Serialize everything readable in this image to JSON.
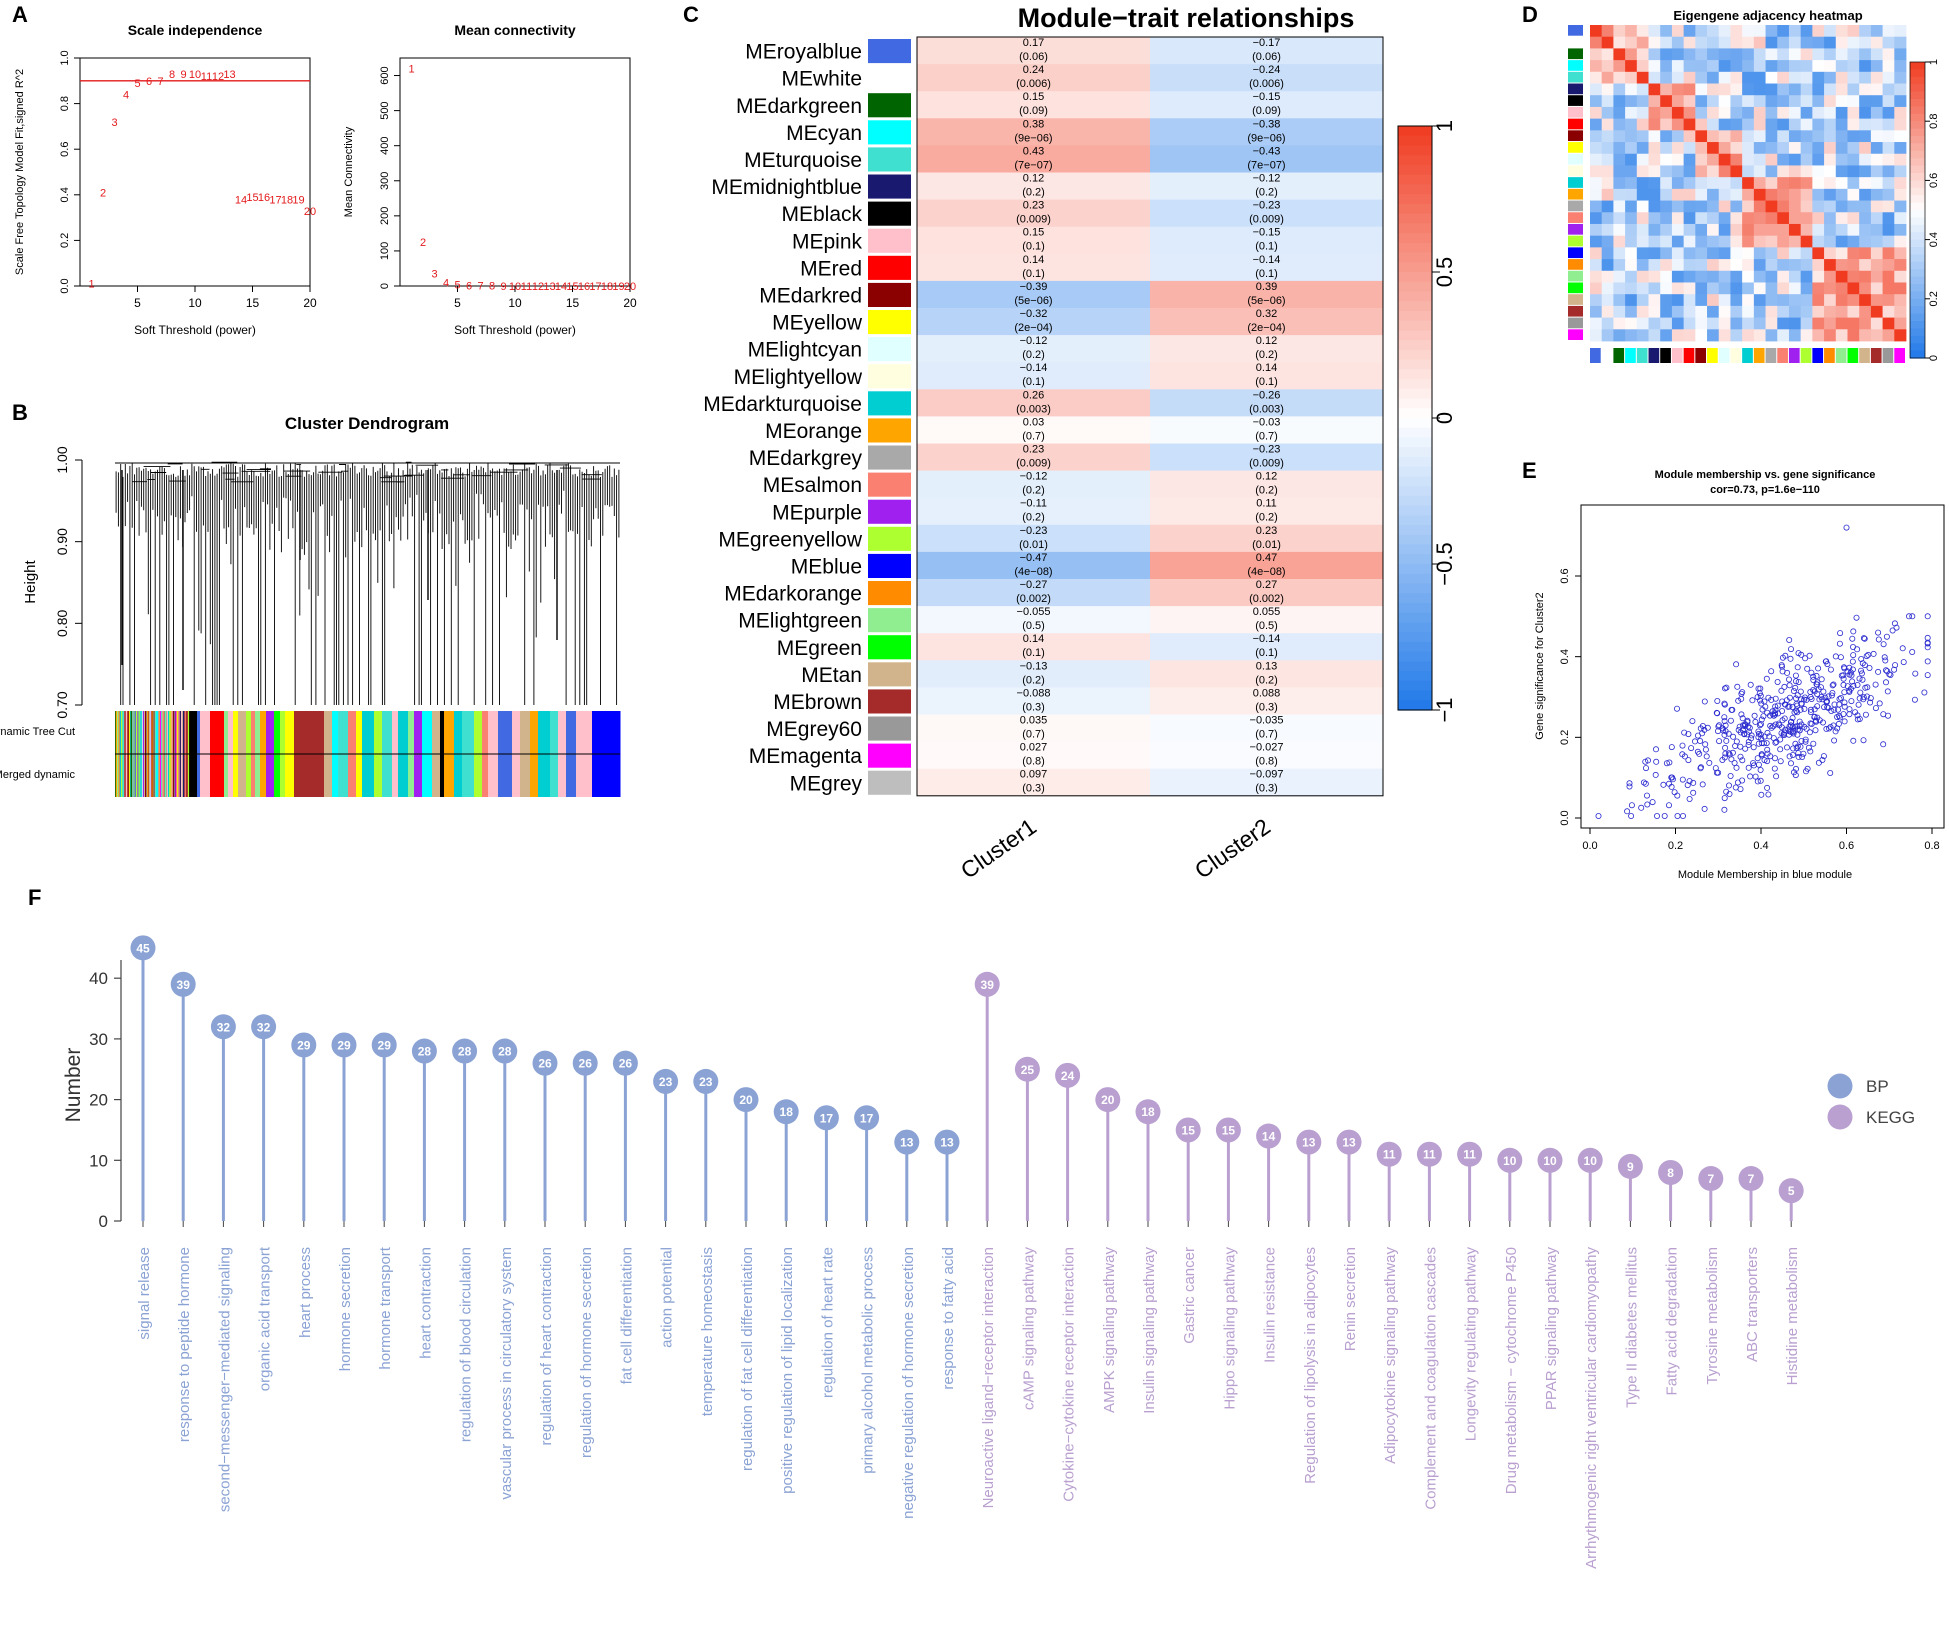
{
  "panel_letters": [
    "A",
    "B",
    "C",
    "D",
    "E",
    "F"
  ],
  "colors": {
    "red": "#e31a1c",
    "line_bp": "#8ba3d4",
    "kegg": "#b9a0d0",
    "scatter": "#2a2ad0",
    "heat_low": "#1f78e8",
    "heat_high": "#f03b20"
  },
  "chart_data": [
    {
      "id": "A1",
      "type": "scatter",
      "title": "Scale independence",
      "xlabel": "Soft Threshold (power)",
      "ylabel": "Scale Free Topology Model Fit,signed R^2",
      "xlim": [
        0,
        20
      ],
      "ylim": [
        0,
        1
      ],
      "xticks": [
        "5",
        "10",
        "15",
        "20"
      ],
      "yticks": [
        "0.0",
        "0.2",
        "0.4",
        "0.6",
        "0.8",
        "1.0"
      ],
      "hline": 0.9,
      "points": [
        {
          "x": 1,
          "y": 0.01,
          "label": "1"
        },
        {
          "x": 2,
          "y": 0.41,
          "label": "2"
        },
        {
          "x": 3,
          "y": 0.72,
          "label": "3"
        },
        {
          "x": 4,
          "y": 0.84,
          "label": "4"
        },
        {
          "x": 5,
          "y": 0.89,
          "label": "5"
        },
        {
          "x": 6,
          "y": 0.9,
          "label": "6"
        },
        {
          "x": 7,
          "y": 0.9,
          "label": "7"
        },
        {
          "x": 8,
          "y": 0.93,
          "label": "8"
        },
        {
          "x": 9,
          "y": 0.93,
          "label": "9"
        },
        {
          "x": 10,
          "y": 0.93,
          "label": "10"
        },
        {
          "x": 11,
          "y": 0.92,
          "label": "11"
        },
        {
          "x": 12,
          "y": 0.92,
          "label": "12"
        },
        {
          "x": 13,
          "y": 0.93,
          "label": "13"
        },
        {
          "x": 14,
          "y": 0.38,
          "label": "14"
        },
        {
          "x": 15,
          "y": 0.39,
          "label": "15"
        },
        {
          "x": 16,
          "y": 0.39,
          "label": "16"
        },
        {
          "x": 17,
          "y": 0.38,
          "label": "17"
        },
        {
          "x": 18,
          "y": 0.38,
          "label": "18"
        },
        {
          "x": 19,
          "y": 0.38,
          "label": "19"
        },
        {
          "x": 20,
          "y": 0.33,
          "label": "20"
        }
      ]
    },
    {
      "id": "A2",
      "type": "scatter",
      "title": "Mean connectivity",
      "xlabel": "Soft Threshold (power)",
      "ylabel": "Mean Connectivity",
      "xlim": [
        0,
        20
      ],
      "ylim": [
        0,
        650
      ],
      "xticks": [
        "5",
        "10",
        "15",
        "20"
      ],
      "yticks": [
        "0",
        "100",
        "200",
        "300",
        "400",
        "500",
        "600"
      ],
      "points": [
        {
          "x": 1,
          "y": 620,
          "label": "1"
        },
        {
          "x": 2,
          "y": 125,
          "label": "2"
        },
        {
          "x": 3,
          "y": 35,
          "label": "3"
        },
        {
          "x": 4,
          "y": 10,
          "label": "4"
        },
        {
          "x": 5,
          "y": 4,
          "label": "5"
        },
        {
          "x": 6,
          "y": 2,
          "label": "6"
        },
        {
          "x": 7,
          "y": 1,
          "label": "7"
        },
        {
          "x": 8,
          "y": 1,
          "label": "8"
        },
        {
          "x": 9,
          "y": 0,
          "label": "9"
        },
        {
          "x": 10,
          "y": 0,
          "label": "10"
        },
        {
          "x": 11,
          "y": 0,
          "label": "11"
        },
        {
          "x": 12,
          "y": 0,
          "label": "12"
        },
        {
          "x": 13,
          "y": 0,
          "label": "13"
        },
        {
          "x": 14,
          "y": 0,
          "label": "14"
        },
        {
          "x": 15,
          "y": 0,
          "label": "15"
        },
        {
          "x": 16,
          "y": 0,
          "label": "16"
        },
        {
          "x": 17,
          "y": 0,
          "label": "17"
        },
        {
          "x": 18,
          "y": 0,
          "label": "18"
        },
        {
          "x": 19,
          "y": 0,
          "label": "19"
        },
        {
          "x": 20,
          "y": 0,
          "label": "20"
        }
      ]
    },
    {
      "id": "B",
      "type": "dendrogram",
      "title": "Cluster Dendrogram",
      "ylabel": "Height",
      "ylim": [
        0.7,
        1.0
      ],
      "yticks": [
        "0.70",
        "0.80",
        "0.90",
        "1.00"
      ],
      "rows": [
        "Dynamic Tree Cut",
        "Merged dynamic"
      ]
    },
    {
      "id": "C",
      "type": "heatmap",
      "title": "Module−trait relationships",
      "columns": [
        "Cluster1",
        "Cluster2"
      ],
      "colorbar_ticks": [
        "1",
        "0.5",
        "0",
        "−0.5",
        "−1"
      ],
      "rows": [
        {
          "name": "MEroyalblue",
          "color": "#4169e1",
          "c1": 0.17,
          "c1t": "0.17",
          "p1": "(0.06)",
          "c2": -0.17,
          "c2t": "−0.17",
          "p2": "(0.06)"
        },
        {
          "name": "MEwhite",
          "color": "#ffffff",
          "c1": 0.24,
          "c1t": "0.24",
          "p1": "(0.006)",
          "c2": -0.24,
          "c2t": "−0.24",
          "p2": "(0.006)"
        },
        {
          "name": "MEdarkgreen",
          "color": "#006400",
          "c1": 0.15,
          "c1t": "0.15",
          "p1": "(0.09)",
          "c2": -0.15,
          "c2t": "−0.15",
          "p2": "(0.09)"
        },
        {
          "name": "MEcyan",
          "color": "#00ffff",
          "c1": 0.38,
          "c1t": "0.38",
          "p1": "(9e−06)",
          "c2": -0.38,
          "c2t": "−0.38",
          "p2": "(9e−06)"
        },
        {
          "name": "MEturquoise",
          "color": "#40e0d0",
          "c1": 0.43,
          "c1t": "0.43",
          "p1": "(7e−07)",
          "c2": -0.43,
          "c2t": "−0.43",
          "p2": "(7e−07)"
        },
        {
          "name": "MEmidnightblue",
          "color": "#191970",
          "c1": 0.12,
          "c1t": "0.12",
          "p1": "(0.2)",
          "c2": -0.12,
          "c2t": "−0.12",
          "p2": "(0.2)"
        },
        {
          "name": "MEblack",
          "color": "#000000",
          "c1": 0.23,
          "c1t": "0.23",
          "p1": "(0.009)",
          "c2": -0.23,
          "c2t": "−0.23",
          "p2": "(0.009)"
        },
        {
          "name": "MEpink",
          "color": "#ffc0cb",
          "c1": 0.15,
          "c1t": "0.15",
          "p1": "(0.1)",
          "c2": -0.15,
          "c2t": "−0.15",
          "p2": "(0.1)"
        },
        {
          "name": "MEred",
          "color": "#ff0000",
          "c1": 0.14,
          "c1t": "0.14",
          "p1": "(0.1)",
          "c2": -0.14,
          "c2t": "−0.14",
          "p2": "(0.1)"
        },
        {
          "name": "MEdarkred",
          "color": "#8b0000",
          "c1": -0.39,
          "c1t": "−0.39",
          "p1": "(5e−06)",
          "c2": 0.39,
          "c2t": "0.39",
          "p2": "(5e−06)"
        },
        {
          "name": "MEyellow",
          "color": "#ffff00",
          "c1": -0.32,
          "c1t": "−0.32",
          "p1": "(2e−04)",
          "c2": 0.32,
          "c2t": "0.32",
          "p2": "(2e−04)"
        },
        {
          "name": "MElightcyan",
          "color": "#e0ffff",
          "c1": -0.12,
          "c1t": "−0.12",
          "p1": "(0.2)",
          "c2": 0.12,
          "c2t": "0.12",
          "p2": "(0.2)"
        },
        {
          "name": "MElightyellow",
          "color": "#ffffe0",
          "c1": -0.14,
          "c1t": "−0.14",
          "p1": "(0.1)",
          "c2": 0.14,
          "c2t": "0.14",
          "p2": "(0.1)"
        },
        {
          "name": "MEdarkturquoise",
          "color": "#00ced1",
          "c1": 0.26,
          "c1t": "0.26",
          "p1": "(0.003)",
          "c2": -0.26,
          "c2t": "−0.26",
          "p2": "(0.003)"
        },
        {
          "name": "MEorange",
          "color": "#ffa500",
          "c1": 0.03,
          "c1t": "0.03",
          "p1": "(0.7)",
          "c2": -0.03,
          "c2t": "−0.03",
          "p2": "(0.7)"
        },
        {
          "name": "MEdarkgrey",
          "color": "#a9a9a9",
          "c1": 0.23,
          "c1t": "0.23",
          "p1": "(0.009)",
          "c2": -0.23,
          "c2t": "−0.23",
          "p2": "(0.009)"
        },
        {
          "name": "MEsalmon",
          "color": "#fa8072",
          "c1": -0.12,
          "c1t": "−0.12",
          "p1": "(0.2)",
          "c2": 0.12,
          "c2t": "0.12",
          "p2": "(0.2)"
        },
        {
          "name": "MEpurple",
          "color": "#a020f0",
          "c1": -0.11,
          "c1t": "−0.11",
          "p1": "(0.2)",
          "c2": 0.11,
          "c2t": "0.11",
          "p2": "(0.2)"
        },
        {
          "name": "MEgreenyellow",
          "color": "#adff2f",
          "c1": -0.23,
          "c1t": "−0.23",
          "p1": "(0.01)",
          "c2": 0.23,
          "c2t": "0.23",
          "p2": "(0.01)"
        },
        {
          "name": "MEblue",
          "color": "#0000ff",
          "c1": -0.47,
          "c1t": "−0.47",
          "p1": "(4e−08)",
          "c2": 0.47,
          "c2t": "0.47",
          "p2": "(4e−08)"
        },
        {
          "name": "MEdarkorange",
          "color": "#ff8c00",
          "c1": -0.27,
          "c1t": "−0.27",
          "p1": "(0.002)",
          "c2": 0.27,
          "c2t": "0.27",
          "p2": "(0.002)"
        },
        {
          "name": "MElightgreen",
          "color": "#90ee90",
          "c1": -0.055,
          "c1t": "−0.055",
          "p1": "(0.5)",
          "c2": 0.055,
          "c2t": "0.055",
          "p2": "(0.5)"
        },
        {
          "name": "MEgreen",
          "color": "#00ff00",
          "c1": 0.14,
          "c1t": "0.14",
          "p1": "(0.1)",
          "c2": -0.14,
          "c2t": "−0.14",
          "p2": "(0.1)"
        },
        {
          "name": "MEtan",
          "color": "#d2b48c",
          "c1": -0.13,
          "c1t": "−0.13",
          "p1": "(0.2)",
          "c2": 0.13,
          "c2t": "0.13",
          "p2": "(0.2)"
        },
        {
          "name": "MEbrown",
          "color": "#a52a2a",
          "c1": -0.088,
          "c1t": "−0.088",
          "p1": "(0.3)",
          "c2": 0.088,
          "c2t": "0.088",
          "p2": "(0.3)"
        },
        {
          "name": "MEgrey60",
          "color": "#999999",
          "c1": 0.035,
          "c1t": "0.035",
          "p1": "(0.7)",
          "c2": -0.035,
          "c2t": "−0.035",
          "p2": "(0.7)"
        },
        {
          "name": "MEmagenta",
          "color": "#ff00ff",
          "c1": 0.027,
          "c1t": "0.027",
          "p1": "(0.8)",
          "c2": -0.027,
          "c2t": "−0.027",
          "p2": "(0.8)"
        },
        {
          "name": "MEgrey",
          "color": "#bebebe",
          "c1": 0.097,
          "c1t": "0.097",
          "p1": "(0.3)",
          "c2": -0.097,
          "c2t": "−0.097",
          "p2": "(0.3)"
        }
      ]
    },
    {
      "id": "D",
      "type": "heatmap",
      "title": "Eigengene adjacency heatmap",
      "colorbar_ticks": [
        "1",
        "0.8",
        "0.6",
        "0.4",
        "0.2",
        "0"
      ],
      "module_colors": [
        "#4169e1",
        "#ffffff",
        "#006400",
        "#00ffff",
        "#40e0d0",
        "#191970",
        "#000000",
        "#ffc0cb",
        "#ff0000",
        "#8b0000",
        "#ffff00",
        "#e0ffff",
        "#ffffe0",
        "#00ced1",
        "#ffa500",
        "#a9a9a9",
        "#fa8072",
        "#a020f0",
        "#adff2f",
        "#0000ff",
        "#ff8c00",
        "#90ee90",
        "#00ff00",
        "#d2b48c",
        "#a52a2a",
        "#999999",
        "#ff00ff"
      ]
    },
    {
      "id": "E",
      "type": "scatter",
      "title": "Module membership vs. gene significance",
      "subtitle": "cor=0.73, p=1.6e−110",
      "xlabel": "Module Membership in blue module",
      "ylabel": "Gene significance for Cluster2",
      "xlim": [
        0,
        0.8
      ],
      "ylim": [
        0,
        0.72
      ],
      "xticks": [
        "0.0",
        "0.2",
        "0.4",
        "0.6",
        "0.8"
      ],
      "yticks": [
        "0.0",
        "0.2",
        "0.4",
        "0.6"
      ],
      "n_points": 520,
      "cor": 0.73
    },
    {
      "id": "F",
      "type": "lollipop",
      "ylabel": "Number",
      "ylim": [
        0,
        47
      ],
      "yticks": [
        "0",
        "10",
        "20",
        "30",
        "40"
      ],
      "legend": [
        {
          "name": "BP",
          "color": "#8ba3d4"
        },
        {
          "name": "KEGG",
          "color": "#b9a0d0"
        }
      ],
      "items": [
        {
          "label": "signal release",
          "value": 45,
          "group": "BP"
        },
        {
          "label": "response to peptide hormone",
          "value": 39,
          "group": "BP"
        },
        {
          "label": "second−messenger−mediated signaling",
          "value": 32,
          "group": "BP"
        },
        {
          "label": "organic acid transport",
          "value": 32,
          "group": "BP"
        },
        {
          "label": "heart process",
          "value": 29,
          "group": "BP"
        },
        {
          "label": "hormone secretion",
          "value": 29,
          "group": "BP"
        },
        {
          "label": "hormone transport",
          "value": 29,
          "group": "BP"
        },
        {
          "label": "heart contraction",
          "value": 28,
          "group": "BP"
        },
        {
          "label": "regulation of blood circulation",
          "value": 28,
          "group": "BP"
        },
        {
          "label": "vascular process in circulatory system",
          "value": 28,
          "group": "BP"
        },
        {
          "label": "regulation of heart contraction",
          "value": 26,
          "group": "BP"
        },
        {
          "label": "regulation of hormone secretion",
          "value": 26,
          "group": "BP"
        },
        {
          "label": "fat cell differentiation",
          "value": 26,
          "group": "BP"
        },
        {
          "label": "action potential",
          "value": 23,
          "group": "BP"
        },
        {
          "label": "temperature homeostasis",
          "value": 23,
          "group": "BP"
        },
        {
          "label": "regulation of fat cell differentiation",
          "value": 20,
          "group": "BP"
        },
        {
          "label": "positive regulation of lipid localization",
          "value": 18,
          "group": "BP"
        },
        {
          "label": "regulation of heart rate",
          "value": 17,
          "group": "BP"
        },
        {
          "label": "primary alcohol metabolic process",
          "value": 17,
          "group": "BP"
        },
        {
          "label": "negative regulation of hormone secretion",
          "value": 13,
          "group": "BP"
        },
        {
          "label": "response to fatty acid",
          "value": 13,
          "group": "BP"
        },
        {
          "label": "Neuroactive ligand−receptor interaction",
          "value": 39,
          "group": "KEGG"
        },
        {
          "label": "cAMP signaling pathway",
          "value": 25,
          "group": "KEGG"
        },
        {
          "label": "Cytokine−cytokine receptor interaction",
          "value": 24,
          "group": "KEGG"
        },
        {
          "label": "AMPK signaling pathway",
          "value": 20,
          "group": "KEGG"
        },
        {
          "label": "Insulin signaling pathway",
          "value": 18,
          "group": "KEGG"
        },
        {
          "label": "Gastric cancer",
          "value": 15,
          "group": "KEGG"
        },
        {
          "label": "Hippo signaling pathway",
          "value": 15,
          "group": "KEGG"
        },
        {
          "label": "Insulin resistance",
          "value": 14,
          "group": "KEGG"
        },
        {
          "label": "Regulation of lipolysis in adipocytes",
          "value": 13,
          "group": "KEGG"
        },
        {
          "label": "Renin secretion",
          "value": 13,
          "group": "KEGG"
        },
        {
          "label": "Adipocytokine signaling pathway",
          "value": 11,
          "group": "KEGG"
        },
        {
          "label": "Complement and coagulation cascades",
          "value": 11,
          "group": "KEGG"
        },
        {
          "label": "Longevity regulating pathway",
          "value": 11,
          "group": "KEGG"
        },
        {
          "label": "Drug metabolism − cytochrome P450",
          "value": 10,
          "group": "KEGG"
        },
        {
          "label": "PPAR signaling pathway",
          "value": 10,
          "group": "KEGG"
        },
        {
          "label": "Arrhythmogenic right ventricular cardiomyopathy",
          "value": 10,
          "group": "KEGG"
        },
        {
          "label": "Type II diabetes mellitus",
          "value": 9,
          "group": "KEGG"
        },
        {
          "label": "Fatty acid degradation",
          "value": 8,
          "group": "KEGG"
        },
        {
          "label": "Tyrosine metabolism",
          "value": 7,
          "group": "KEGG"
        },
        {
          "label": "ABC transporters",
          "value": 7,
          "group": "KEGG"
        },
        {
          "label": "Histidine metabolism",
          "value": 5,
          "group": "KEGG"
        }
      ]
    }
  ]
}
